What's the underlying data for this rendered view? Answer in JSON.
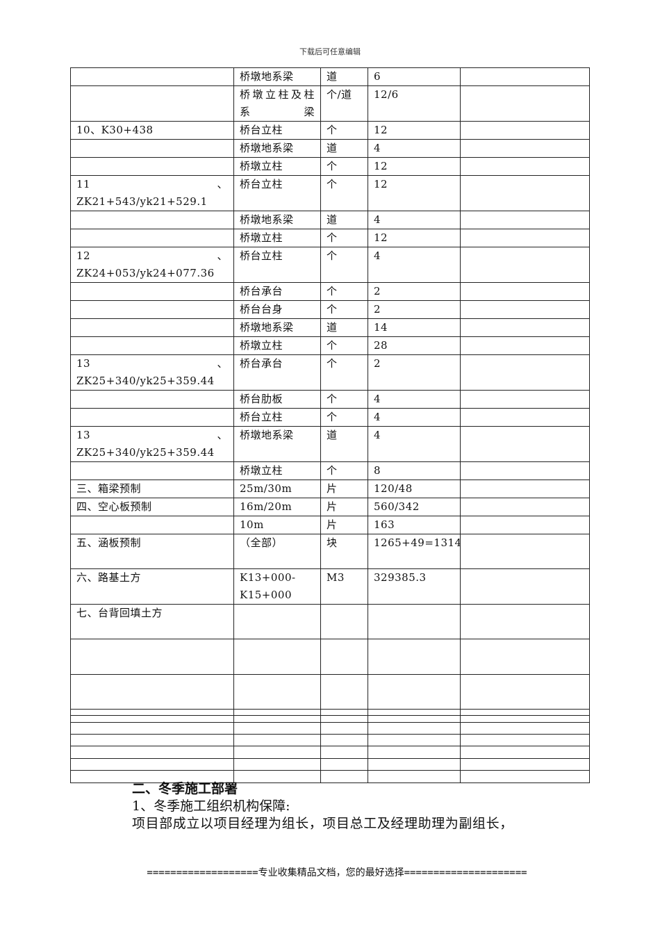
{
  "header_note": "下载后可任意编辑",
  "table": {
    "rows": [
      [
        "",
        "桥墩地系梁",
        "道",
        "6",
        ""
      ],
      [
        "",
        "桥墩立柱及柱系梁",
        "个/道",
        "12/6",
        ""
      ],
      [
        "10、K30+438",
        "桥台立柱",
        "个",
        "12",
        ""
      ],
      [
        "",
        "桥墩地系梁",
        "道",
        "4",
        ""
      ],
      [
        "",
        "桥墩立柱",
        "个",
        "12",
        ""
      ],
      [
        "11、ZK21+543/yk21+529.1",
        "桥台立柱",
        "个",
        "12",
        ""
      ],
      [
        "",
        "桥墩地系梁",
        "道",
        "4",
        ""
      ],
      [
        "",
        "桥墩立柱",
        "个",
        "12",
        ""
      ],
      [
        "12、ZK24+053/yk24+077.36",
        "桥台立柱",
        "个",
        "4",
        ""
      ],
      [
        "",
        "桥台承台",
        "个",
        "2",
        ""
      ],
      [
        "",
        "桥台台身",
        "个",
        "2",
        ""
      ],
      [
        "",
        "桥墩地系梁",
        "道",
        "14",
        ""
      ],
      [
        "",
        "桥墩立柱",
        "个",
        "28",
        ""
      ],
      [
        "13、ZK25+340/yk25+359.44",
        "桥台承台",
        "个",
        "2",
        ""
      ],
      [
        "",
        "桥台肋板",
        "个",
        "4",
        ""
      ],
      [
        "",
        "桥台立柱",
        "个",
        "4",
        ""
      ],
      [
        "13、ZK25+340/yk25+359.44",
        "桥墩地系梁",
        "道",
        "4",
        ""
      ],
      [
        "",
        "桥墩立柱",
        "个",
        "8",
        ""
      ],
      [
        "三、箱梁预制",
        "25m/30m",
        "片",
        "120/48",
        ""
      ],
      [
        "四、空心板预制",
        "16m/20m",
        "片",
        "560/342",
        ""
      ],
      [
        "",
        "10m",
        "片",
        "163",
        ""
      ],
      [
        "五、涵板预制",
        "（全部）",
        "块",
        "1265+49=1314",
        ""
      ],
      [
        "六、路基土方",
        "K13+000-K15+000",
        "M3",
        "329385.3",
        ""
      ],
      [
        "七、台背回填土方",
        "",
        "",
        "",
        ""
      ],
      [
        "",
        "",
        "",
        "",
        ""
      ],
      [
        "",
        "",
        "",
        "",
        ""
      ],
      [
        "",
        "",
        "",
        "",
        ""
      ],
      [
        "",
        "",
        "",
        "",
        ""
      ],
      [
        "",
        "",
        "",
        "",
        ""
      ],
      [
        "",
        "",
        "",
        "",
        ""
      ],
      [
        "",
        "",
        "",
        "",
        ""
      ],
      [
        "",
        "",
        "",
        "",
        ""
      ],
      [
        "",
        "",
        "",
        "",
        ""
      ]
    ]
  },
  "section_heading": "二、冬季施工部署",
  "paragraph_1": "1、冬季施工组织机构保障:",
  "paragraph_2": "项目部成立以项目经理为组长，项目总工及经理助理为副组长，",
  "footer": "===================专业收集精品文档，您的最好选择====================="
}
